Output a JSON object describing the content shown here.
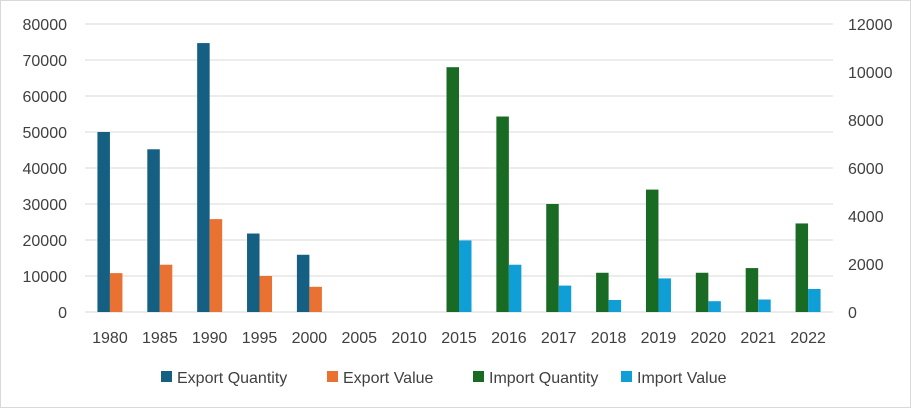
{
  "chart_data": {
    "type": "bar",
    "categories": [
      "1980",
      "1985",
      "1990",
      "1995",
      "2000",
      "2005",
      "2010",
      "2015",
      "2016",
      "2017",
      "2018",
      "2019",
      "2020",
      "2021",
      "2022"
    ],
    "series": [
      {
        "name": "Export Quantity",
        "axis": "left",
        "color": "#156082",
        "values": [
          50000,
          45200,
          74700,
          21800,
          15900,
          null,
          null,
          null,
          null,
          null,
          null,
          null,
          null,
          null,
          null
        ]
      },
      {
        "name": "Export Value",
        "axis": "right",
        "color": "#e97132",
        "values": [
          1620,
          1970,
          3870,
          1500,
          1050,
          null,
          null,
          null,
          null,
          null,
          null,
          null,
          null,
          null,
          null
        ]
      },
      {
        "name": "Import Quantity",
        "axis": "left",
        "color": "#196b24",
        "values": [
          null,
          null,
          null,
          null,
          null,
          null,
          null,
          68000,
          54300,
          30000,
          10900,
          34000,
          10900,
          12200,
          24600
        ]
      },
      {
        "name": "Import Value",
        "axis": "right",
        "color": "#0f9ed5",
        "values": [
          null,
          null,
          null,
          null,
          null,
          null,
          null,
          2980,
          1970,
          1100,
          500,
          1400,
          450,
          520,
          960
        ]
      }
    ],
    "y_left": {
      "min": 0,
      "max": 80000,
      "ticks": [
        "0",
        "10000",
        "20000",
        "30000",
        "40000",
        "50000",
        "60000",
        "70000",
        "80000"
      ]
    },
    "y_right": {
      "min": 0,
      "max": 12000,
      "ticks": [
        "0",
        "2000",
        "4000",
        "6000",
        "8000",
        "10000",
        "12000"
      ]
    },
    "title": "",
    "xlabel": "",
    "ylabel": "",
    "grid": true,
    "legend_position": "bottom"
  }
}
